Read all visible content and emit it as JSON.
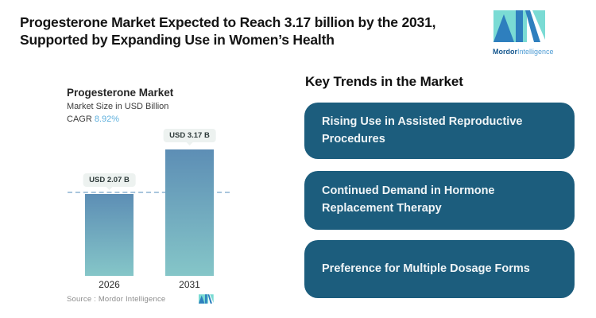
{
  "colors": {
    "title-text": "#141414",
    "accent-box": "#1C5D7D",
    "box-text": "#EFF4F6",
    "bar-top": "#5D8EB5",
    "bar-bottom": "#85C6C8",
    "dash-line": "#A9C6DD",
    "cagr-value": "#5FB0DD",
    "pill-bg": "#EDF2F0",
    "logo-blue": "#2E7FBE",
    "logo-teal": "#7ADBD4",
    "logo-text-dark": "#16588F",
    "logo-text-light": "#4E9CD4"
  },
  "header": {
    "title_line1": "Progesterone Market Expected to Reach 3.17 billion by the 2031,",
    "title_line2": "Supported by Expanding Use in Women’s Health",
    "logo_word1": "Mordor",
    "logo_word2": "Intelligence"
  },
  "chart_data": {
    "type": "bar",
    "title": "Progesterone Market",
    "subtitle": "Market Size in USD Billion",
    "cagr_label": "CAGR",
    "cagr_value": "8.92%",
    "categories": [
      "2026",
      "2031"
    ],
    "values": [
      2.07,
      3.17
    ],
    "bar_labels": [
      "USD 2.07 B",
      "USD 3.17 B"
    ],
    "unit": "USD Billion",
    "ylim": [
      0,
      3.4
    ],
    "reference_line_value": 2.07,
    "grid": false,
    "legend": "none",
    "source_label": "Source :  Mordor Intelligence"
  },
  "trends": {
    "heading": "Key Trends in the Market",
    "items": [
      "Rising Use in Assisted Reproductive Procedures",
      "Continued Demand in Hormone Replacement Therapy",
      "Preference for Multiple Dosage Forms"
    ]
  }
}
